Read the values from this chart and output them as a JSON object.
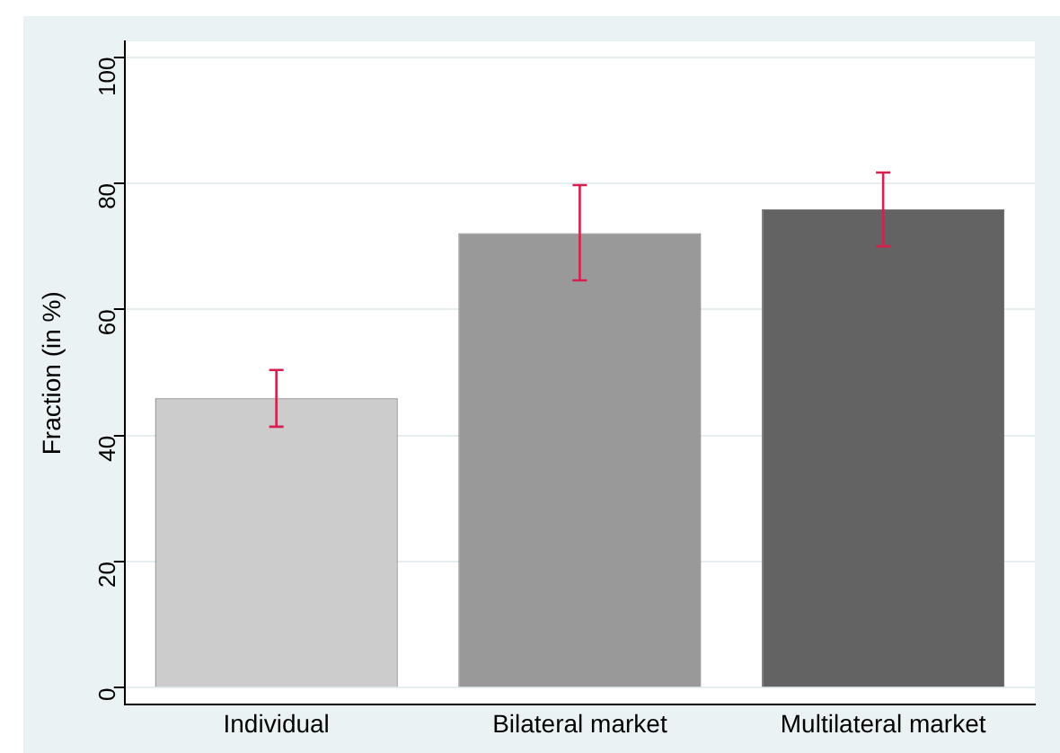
{
  "chart_data": {
    "type": "bar",
    "ylabel": "Fraction (in %)",
    "categories": [
      "Individual",
      "Bilateral market",
      "Multilateral market"
    ],
    "values": [
      45.9,
      72.1,
      75.9
    ],
    "colors": [
      "#cccccc",
      "#999999",
      "#636363"
    ],
    "errors": [
      [
        41.4,
        50.4
      ],
      [
        64.6,
        79.7
      ],
      [
        70.0,
        81.7
      ]
    ],
    "ylim": [
      -2.7,
      102.5
    ],
    "yticks": [
      0,
      20,
      40,
      60,
      80,
      100
    ],
    "grid": "y",
    "legend": false
  }
}
